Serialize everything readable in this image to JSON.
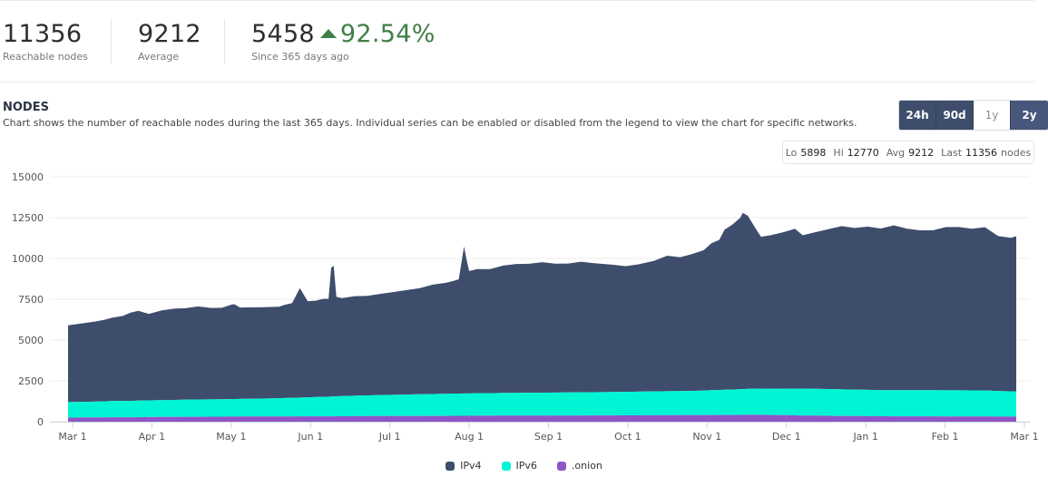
{
  "stats": [
    {
      "value": "11356",
      "label": "Reachable nodes"
    },
    {
      "value": "9212",
      "label": "Average"
    },
    {
      "value": "5458",
      "change": "92.54%",
      "label": "Since 365 days ago"
    }
  ],
  "section": {
    "title": "NODES",
    "description": "Chart shows the number of reachable nodes during the last 365 days. Individual series can be enabled or disabled from the legend to view the chart for specific networks."
  },
  "range_buttons": [
    {
      "label": "24h",
      "active": true
    },
    {
      "label": "90d",
      "active": true
    },
    {
      "label": "1y",
      "active": false
    },
    {
      "label": "2y",
      "active": true
    }
  ],
  "summary": {
    "lo_label": "Lo",
    "lo": "5898",
    "hi_label": "Hi",
    "hi": "12770",
    "avg_label": "Avg",
    "avg": "9212",
    "last_label": "Last",
    "last": "11356",
    "last_unit": "nodes"
  },
  "colors": {
    "ipv4": "#3f4d6c",
    "ipv6": "#00f5d4",
    "onion": "#8e55c7",
    "accent": "#3e4d6b",
    "up": "#3f7f47"
  },
  "chart_data": {
    "type": "area",
    "stacked": true,
    "x_ticks": [
      "Mar 1",
      "Apr 1",
      "May 1",
      "Jun 1",
      "Jul 1",
      "Aug 1",
      "Sep 1",
      "Oct 1",
      "Nov 1",
      "Dec 1",
      "Jan 1",
      "Feb 1",
      "Mar 1"
    ],
    "ylim": [
      0,
      15000
    ],
    "y_ticks": [
      "0",
      "2500",
      "5000",
      "7500",
      "10000",
      "12500",
      "15000"
    ],
    "grid": true,
    "legend_position": "bottom-center",
    "x_days": [
      0,
      5,
      10,
      14,
      17,
      21,
      24,
      27,
      31,
      36,
      41,
      45,
      50,
      55,
      59,
      61,
      63,
      64,
      66,
      75,
      81,
      83,
      86,
      89,
      92,
      95,
      98,
      100,
      101,
      102,
      103,
      105,
      110,
      115,
      120,
      125,
      130,
      135,
      140,
      145,
      148,
      150,
      152,
      153,
      154,
      157,
      162,
      167,
      172,
      177,
      182,
      187,
      192,
      197,
      202,
      209,
      214,
      219,
      225,
      230,
      235,
      240,
      244,
      247,
      250,
      252,
      255,
      258,
      259,
      261,
      264,
      266,
      270,
      275,
      279,
      282,
      287,
      292,
      297,
      302,
      307,
      312,
      317,
      322,
      327,
      332,
      337,
      342,
      347,
      352,
      357,
      362,
      364
    ],
    "series": [
      {
        "name": "IPv4",
        "values": [
          4700,
          4800,
          4900,
          5000,
          5100,
          5200,
          5400,
          5500,
          5300,
          5500,
          5600,
          5600,
          5700,
          5600,
          5600,
          5700,
          5800,
          5800,
          5600,
          5600,
          5600,
          5700,
          5800,
          6700,
          5900,
          5900,
          6000,
          6000,
          7900,
          8000,
          6100,
          6000,
          6100,
          6100,
          6200,
          6300,
          6400,
          6500,
          6700,
          6800,
          6900,
          7000,
          9000,
          8200,
          7500,
          7600,
          7600,
          7800,
          7900,
          7900,
          8000,
          7900,
          7900,
          8000,
          7900,
          7800,
          7700,
          7800,
          8000,
          8300,
          8200,
          8400,
          8600,
          9000,
          9200,
          9800,
          10100,
          10500,
          10800,
          10600,
          9800,
          9300,
          9400,
          9600,
          9800,
          9400,
          9600,
          9800,
          10000,
          9900,
          10000,
          9900,
          10100,
          9900,
          9800,
          9800,
          10000,
          10000,
          9900,
          10000,
          9500,
          9400,
          9500
        ]
      },
      {
        "name": "IPv6",
        "values": [
          950,
          960,
          970,
          980,
          1000,
          1000,
          1000,
          1010,
          1020,
          1030,
          1040,
          1050,
          1060,
          1060,
          1070,
          1070,
          1080,
          1080,
          1080,
          1100,
          1120,
          1130,
          1140,
          1150,
          1160,
          1180,
          1200,
          1200,
          1210,
          1210,
          1220,
          1230,
          1250,
          1270,
          1290,
          1300,
          1310,
          1330,
          1340,
          1350,
          1360,
          1360,
          1370,
          1370,
          1370,
          1380,
          1380,
          1390,
          1390,
          1400,
          1400,
          1410,
          1410,
          1420,
          1420,
          1430,
          1440,
          1450,
          1460,
          1470,
          1480,
          1490,
          1500,
          1520,
          1530,
          1550,
          1560,
          1570,
          1580,
          1590,
          1600,
          1610,
          1620,
          1620,
          1630,
          1640,
          1640,
          1640,
          1630,
          1620,
          1610,
          1600,
          1600,
          1600,
          1600,
          1600,
          1600,
          1600,
          1600,
          1600,
          1570,
          1550,
          1550
        ]
      },
      {
        "name": ".onion",
        "values": [
          250,
          255,
          260,
          265,
          270,
          275,
          275,
          280,
          285,
          290,
          295,
          300,
          300,
          305,
          305,
          310,
          310,
          310,
          315,
          315,
          320,
          320,
          320,
          325,
          325,
          330,
          330,
          330,
          330,
          330,
          335,
          335,
          340,
          340,
          345,
          345,
          350,
          350,
          355,
          355,
          360,
          360,
          360,
          360,
          360,
          365,
          365,
          370,
          370,
          370,
          375,
          375,
          380,
          380,
          385,
          385,
          390,
          390,
          395,
          395,
          400,
          400,
          405,
          405,
          410,
          410,
          410,
          415,
          415,
          420,
          420,
          420,
          410,
          400,
          390,
          380,
          370,
          360,
          350,
          345,
          340,
          335,
          330,
          330,
          325,
          325,
          320,
          320,
          315,
          315,
          310,
          310,
          310
        ]
      }
    ]
  }
}
